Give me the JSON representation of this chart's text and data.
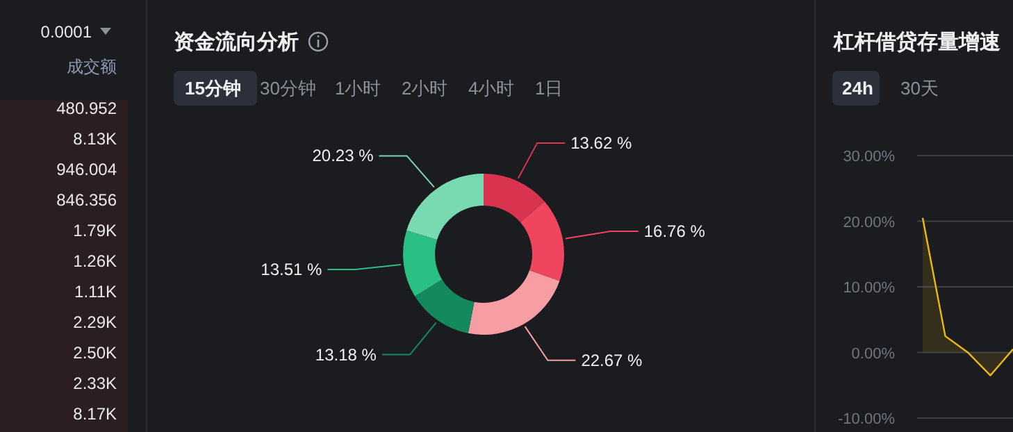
{
  "chart_data": [
    {
      "type": "other",
      "annotations": [
        "0.0001",
        "成交额",
        "480.952",
        "8.13K",
        "946.004",
        "846.356",
        "1.79K",
        "1.26K",
        "1.11K",
        "2.29K",
        "2.50K",
        "2.33K",
        "8.17K"
      ]
    },
    {
      "type": "donut",
      "title": "资金流向分析",
      "annotations": [
        "15分钟",
        "30分钟",
        "1小时",
        "2小时",
        "4小时",
        "1日"
      ],
      "categories": [
        null,
        null,
        null,
        null,
        null,
        null
      ],
      "values": [
        13.62,
        16.76,
        22.67,
        13.18,
        13.51,
        20.23
      ],
      "colors": [
        "#d9344f",
        "#f0455f",
        "#f79ea5",
        "#14895e",
        "#2abf83",
        "#79d9b0"
      ],
      "value_labels": [
        "13.62 %",
        "16.76 %",
        "22.67 %",
        "13.18 %",
        "13.51 %",
        "20.23 %"
      ]
    },
    {
      "type": "area",
      "title": "杠杆借贷存量增速",
      "annotations": [
        "24h",
        "30天"
      ],
      "categories": [
        null,
        null,
        null,
        null,
        null
      ],
      "series": [
        {
          "color": "#f0b90b",
          "values": [
            20.5,
            2.5,
            0,
            -3.5,
            0.5
          ]
        }
      ],
      "ylim": [
        -10,
        30
      ],
      "grid": "y",
      "yticks": [
        {
          "value": -10,
          "label": "-10.00%"
        },
        {
          "value": 0,
          "label": "0.00%"
        },
        {
          "value": 10,
          "label": "10.00%"
        },
        {
          "value": 20,
          "label": "20.00%"
        },
        {
          "value": 30,
          "label": "30.00%"
        }
      ]
    }
  ]
}
